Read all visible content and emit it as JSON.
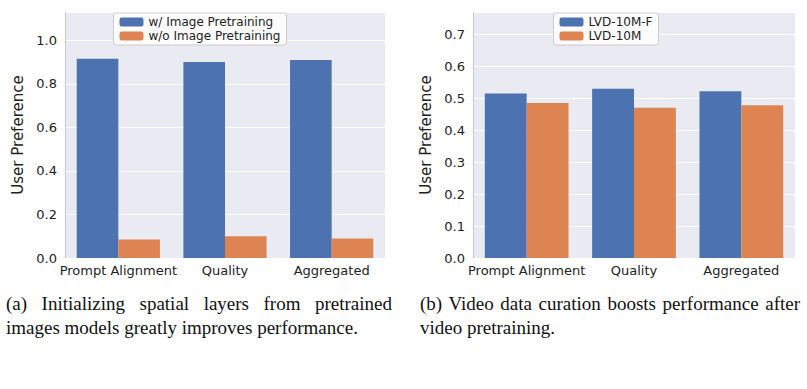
{
  "chart_data": [
    {
      "type": "bar",
      "caption": "(a) Initializing spatial layers from pretrained images models greatly improves performance.",
      "y_label": "User Preference",
      "categories": [
        "Prompt Alignment",
        "Quality",
        "Aggregated"
      ],
      "series": [
        {
          "name": "w/ Image Pretraining",
          "color": "#4c72b0",
          "values": [
            0.915,
            0.9,
            0.91
          ]
        },
        {
          "name": "w/o Image Pretraining",
          "color": "#dd8452",
          "values": [
            0.085,
            0.1,
            0.09
          ]
        }
      ],
      "ylim": [
        0,
        1.13
      ],
      "yticks": [
        {
          "value": 0,
          "label": "0.0"
        },
        0.2,
        0.4,
        0.6,
        0.8,
        {
          "value": 1,
          "label": "1.0"
        }
      ],
      "grid": true,
      "legend": "top"
    },
    {
      "type": "bar",
      "caption": "(b) Video data curation boosts performance after video pretraining.",
      "y_label": "User Preference",
      "categories": [
        "Prompt Alignment",
        "Quality",
        "Aggregated"
      ],
      "series": [
        {
          "name": "LVD-10M-F",
          "color": "#4c72b0",
          "values": [
            0.515,
            0.53,
            0.522
          ]
        },
        {
          "name": "LVD-10M",
          "color": "#dd8452",
          "values": [
            0.485,
            0.47,
            0.478
          ]
        }
      ],
      "ylim": [
        0,
        0.77
      ],
      "yticks": [
        {
          "value": 0,
          "label": "0.0"
        },
        0.1,
        0.2,
        0.3,
        0.4,
        0.5,
        0.6,
        0.7
      ],
      "grid": true,
      "legend": "top"
    }
  ]
}
